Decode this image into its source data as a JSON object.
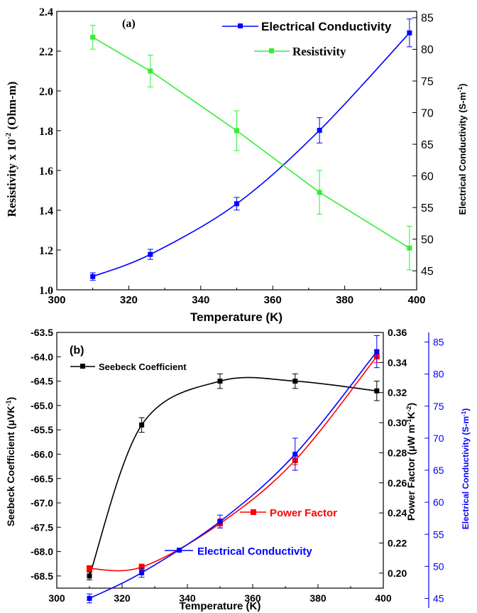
{
  "chart_data": [
    {
      "type": "line",
      "panel_label": "(a)",
      "xlabel": "Temperature (K)",
      "ylabel_left_main": "Resistivity x 10",
      "ylabel_left_sup": "-2",
      "ylabel_left_unit": " (Ohm-m)",
      "ylabel_right_main": "Electrical Conductivity (S-m",
      "ylabel_right_sup": "-1",
      "ylabel_right_end": ")",
      "xlim": [
        300,
        400
      ],
      "xticks": [
        "300",
        "320",
        "340",
        "360",
        "380",
        "400"
      ],
      "ylim_left": [
        1.0,
        2.4
      ],
      "yticks_left": [
        "1.0",
        "1.2",
        "1.4",
        "1.6",
        "1.8",
        "2.0",
        "2.2",
        "2.4"
      ],
      "ylim_right": [
        42,
        86
      ],
      "yticks_right": [
        "45",
        "50",
        "55",
        "60",
        "65",
        "70",
        "75",
        "80",
        "85"
      ],
      "series": [
        {
          "name": "Electrical Conductivity",
          "axis": "right",
          "color": "#0000ff",
          "x": [
            310,
            326,
            350,
            373,
            398
          ],
          "y": [
            44.1,
            47.6,
            55.6,
            67.2,
            82.6
          ],
          "err": [
            0.6,
            0.8,
            1.0,
            2.0,
            2.2
          ]
        },
        {
          "name": "Resistivity",
          "axis": "left",
          "color": "#33ee33",
          "x": [
            310,
            326,
            350,
            373,
            398
          ],
          "y": [
            2.27,
            2.1,
            1.8,
            1.49,
            1.21
          ],
          "err": [
            0.06,
            0.08,
            0.1,
            0.11,
            0.11
          ]
        }
      ]
    },
    {
      "type": "line",
      "panel_label": "(b)",
      "xlabel": "Temperature (K)",
      "ylabel_left": "Seebeck Coefficient (μVK",
      "ylabel_left_sup": "-1",
      "ylabel_left_end": ")",
      "ylabel_right1_main": "Power Factor (μW m",
      "ylabel_right1_sup1": "-1",
      "ylabel_right1_mid": "K",
      "ylabel_right1_sup2": "-2",
      "ylabel_right1_end": ")",
      "ylabel_right2_main": "Electrical Conductivity (S-m",
      "ylabel_right2_sup": "-1",
      "ylabel_right2_end": ")",
      "xlim": [
        300,
        400
      ],
      "xticks": [
        "300",
        "320",
        "340",
        "360",
        "380",
        "400"
      ],
      "ylim_left": [
        -68.75,
        -63.5
      ],
      "yticks_left": [
        "-68.5",
        "-68.0",
        "-67.5",
        "-67.0",
        "-66.5",
        "-66.0",
        "-65.5",
        "-65.0",
        "-64.5",
        "-64.0",
        "-63.5"
      ],
      "ylim_right1": [
        0.19,
        0.36
      ],
      "yticks_right1": [
        "0.20",
        "0.22",
        "0.24",
        "0.26",
        "0.28",
        "0.30",
        "0.32",
        "0.34",
        "0.36"
      ],
      "ylim_right2": [
        43.5,
        86.5
      ],
      "yticks_right2": [
        "45",
        "50",
        "55",
        "60",
        "65",
        "70",
        "75",
        "80",
        "85"
      ],
      "series": [
        {
          "name": "Seebeck Coefficient",
          "axis": "left",
          "color": "#000000",
          "x": [
            310,
            326,
            350,
            373,
            398
          ],
          "y": [
            -68.5,
            -65.4,
            -64.5,
            -64.5,
            -64.7
          ],
          "err": [
            0.08,
            0.15,
            0.15,
            0.15,
            0.2
          ]
        },
        {
          "name": "Power Factor",
          "axis": "right1",
          "color": "#ff0000",
          "x": [
            310,
            326,
            350,
            373,
            398
          ],
          "y": [
            0.203,
            0.204,
            0.233,
            0.275,
            0.344
          ],
          "err": [
            0.002,
            0.002,
            0.003,
            0.003,
            0.004
          ]
        },
        {
          "name": "Electrical Conductivity",
          "axis": "right2",
          "color": "#0000ff",
          "x": [
            310,
            326,
            350,
            373,
            398
          ],
          "y": [
            45.0,
            49.0,
            57.0,
            67.5,
            83.5
          ],
          "err": [
            0.7,
            0.7,
            1.0,
            2.5,
            2.5
          ]
        }
      ]
    }
  ]
}
